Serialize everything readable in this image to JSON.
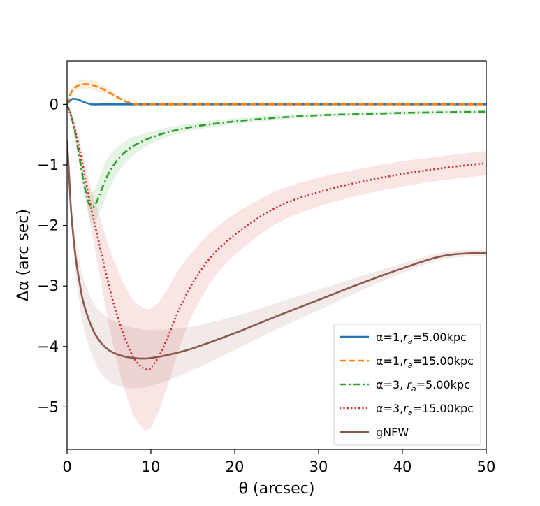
{
  "chart_data": {
    "type": "line",
    "title": "",
    "xlabel": "θ (arcsec)",
    "ylabel": "Δα (arc sec)",
    "xlim": [
      0,
      50
    ],
    "ylim": [
      -5.7,
      0.72
    ],
    "xticks": [
      0,
      10,
      20,
      30,
      40,
      50
    ],
    "xtick_labels": [
      "0",
      "10",
      "20",
      "30",
      "40",
      "50"
    ],
    "yticks": [
      0,
      -1,
      -2,
      -3,
      -4,
      -5
    ],
    "ytick_labels": [
      "0",
      "−1",
      "−2",
      "−3",
      "−4",
      "−5"
    ],
    "grid": false,
    "legend_position": "lower-right",
    "series": [
      {
        "name": "α=1,r_a=5.00kpc",
        "label_main": "α=1,",
        "label_r": "r",
        "label_sub": "a",
        "label_tail": "=5.00kpc",
        "color": "#1f77b4",
        "dash": "solid",
        "x": [
          0,
          0.5,
          1,
          1.5,
          2,
          2.5,
          3,
          4,
          5,
          10,
          20,
          30,
          40,
          50
        ],
        "values": [
          0,
          0.08,
          0.09,
          0.07,
          0.04,
          0.015,
          0,
          0,
          0,
          0,
          0,
          0,
          0,
          0
        ],
        "band_width": [
          0,
          0.01,
          0.01,
          0.01,
          0.01,
          0.005,
          0,
          0,
          0,
          0,
          0,
          0,
          0,
          0
        ]
      },
      {
        "name": "α=1,r_a=15.00kpc",
        "label_main": "α=1,",
        "label_r": "r",
        "label_sub": "a",
        "label_tail": "=15.00kpc",
        "color": "#ff7f0e",
        "dash": "dashed",
        "x": [
          0,
          0.5,
          1,
          1.5,
          2,
          2.5,
          3,
          4,
          5,
          6,
          7,
          8,
          9,
          10,
          20,
          30,
          40,
          50
        ],
        "values": [
          0,
          0.2,
          0.28,
          0.32,
          0.33,
          0.33,
          0.32,
          0.27,
          0.2,
          0.12,
          0.05,
          0.01,
          0,
          0,
          0,
          0,
          0,
          0
        ],
        "band_width": [
          0,
          0.04,
          0.06,
          0.07,
          0.08,
          0.08,
          0.08,
          0.07,
          0.05,
          0.03,
          0.02,
          0.01,
          0,
          0,
          0,
          0,
          0,
          0
        ]
      },
      {
        "name": "α=3, r_a=5.00kpc",
        "label_main": "α=3, ",
        "label_r": "r",
        "label_sub": "a",
        "label_tail": "=5.00kpc",
        "color": "#2ca02c",
        "dash": "dashdot",
        "x": [
          0,
          0.5,
          1,
          1.5,
          2,
          2.5,
          3,
          3.5,
          4,
          4.5,
          5,
          6,
          7,
          8,
          9,
          10,
          12,
          15,
          20,
          25,
          30,
          35,
          40,
          45,
          50
        ],
        "values": [
          0,
          -0.2,
          -0.5,
          -0.9,
          -1.3,
          -1.6,
          -1.7,
          -1.62,
          -1.45,
          -1.28,
          -1.13,
          -0.92,
          -0.78,
          -0.68,
          -0.61,
          -0.55,
          -0.46,
          -0.37,
          -0.28,
          -0.22,
          -0.18,
          -0.16,
          -0.14,
          -0.13,
          -0.12
        ],
        "band_width": [
          0,
          0.05,
          0.08,
          0.12,
          0.16,
          0.2,
          0.25,
          0.28,
          0.3,
          0.3,
          0.28,
          0.22,
          0.18,
          0.15,
          0.12,
          0.1,
          0.08,
          0.06,
          0.05,
          0.04,
          0.03,
          0.03,
          0.03,
          0.03,
          0.03
        ]
      },
      {
        "name": "α=3,r_a=15.00kpc",
        "label_main": "α=3,",
        "label_r": "r",
        "label_sub": "a",
        "label_tail": "=15.00kpc",
        "color": "#d62728",
        "dash": "dotted",
        "x": [
          0,
          0.5,
          1,
          1.5,
          2,
          2.5,
          3,
          4,
          5,
          6,
          7,
          8,
          9,
          9.5,
          10,
          11,
          12,
          13,
          14,
          15,
          17,
          20,
          25,
          30,
          35,
          40,
          45,
          50
        ],
        "values": [
          0,
          -0.2,
          -0.45,
          -0.75,
          -1.1,
          -1.45,
          -1.8,
          -2.4,
          -3.0,
          -3.5,
          -3.9,
          -4.2,
          -4.35,
          -4.38,
          -4.35,
          -4.15,
          -3.85,
          -3.5,
          -3.2,
          -2.95,
          -2.55,
          -2.15,
          -1.7,
          -1.45,
          -1.28,
          -1.15,
          -1.05,
          -0.97
        ],
        "band_width": [
          0,
          0.05,
          0.1,
          0.15,
          0.2,
          0.28,
          0.35,
          0.5,
          0.65,
          0.78,
          0.88,
          0.95,
          1.0,
          1.0,
          0.98,
          0.9,
          0.8,
          0.7,
          0.6,
          0.52,
          0.42,
          0.34,
          0.27,
          0.24,
          0.22,
          0.21,
          0.2,
          0.2
        ]
      },
      {
        "name": "gNFW",
        "label_main": "gNFW",
        "label_r": "",
        "label_sub": "",
        "label_tail": "",
        "color": "#8c564b",
        "dash": "solid",
        "x": [
          0,
          0.25,
          0.5,
          1,
          1.5,
          2,
          3,
          4,
          5,
          6,
          7,
          8,
          9,
          10,
          12,
          15,
          20,
          25,
          30,
          35,
          40,
          45,
          50
        ],
        "values": [
          -0.6,
          -1.2,
          -1.8,
          -2.5,
          -2.95,
          -3.3,
          -3.7,
          -3.93,
          -4.06,
          -4.13,
          -4.17,
          -4.19,
          -4.2,
          -4.19,
          -4.14,
          -4.03,
          -3.78,
          -3.5,
          -3.23,
          -2.96,
          -2.71,
          -2.5,
          -2.45
        ],
        "band_width": [
          0.05,
          0.1,
          0.18,
          0.28,
          0.34,
          0.4,
          0.46,
          0.5,
          0.52,
          0.52,
          0.51,
          0.5,
          0.48,
          0.46,
          0.42,
          0.36,
          0.28,
          0.22,
          0.17,
          0.12,
          0.08,
          0.06,
          0.05
        ]
      }
    ]
  }
}
